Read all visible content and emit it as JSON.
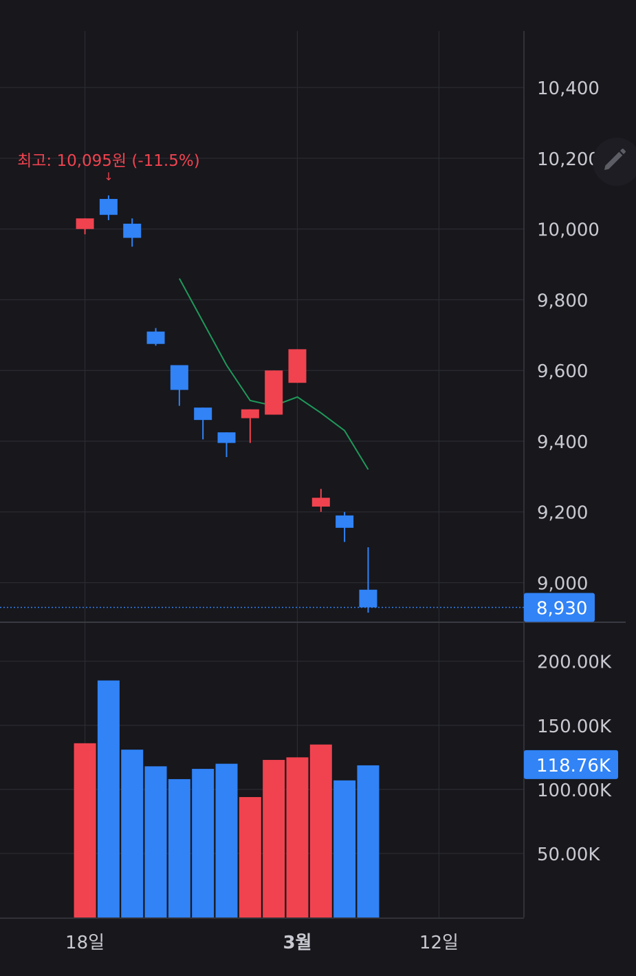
{
  "theme": {
    "background": "#17171c",
    "grid": "#2b2b33",
    "axis_text": "#c9c9d1",
    "up_color": "#f0434f",
    "down_color": "#3183f6",
    "ma_color": "#1f9a5a",
    "current_price_bg": "#3183f6"
  },
  "tools": {
    "edit_icon": "pencil-icon"
  },
  "chart_data": [
    {
      "type": "candlestick",
      "x_ticks": [
        {
          "label": "18일",
          "index": 0
        },
        {
          "label": "3월",
          "index": 9,
          "bold": true
        },
        {
          "label": "12일",
          "index": 15
        }
      ],
      "y_ticks": [
        "10,400",
        "10,200",
        "10,000",
        "9,800",
        "9,600",
        "9,400",
        "9,200",
        "9,000"
      ],
      "y_tick_values": [
        10400,
        10200,
        10000,
        9800,
        9600,
        9400,
        9200,
        9000
      ],
      "ylim": [
        8890,
        10560
      ],
      "xlim": [
        -3.6,
        18.6
      ],
      "candles": [
        {
          "i": 0,
          "open": 10000,
          "close": 10030,
          "high": 10030,
          "low": 9985
        },
        {
          "i": 1,
          "open": 10085,
          "close": 10040,
          "high": 10095,
          "low": 10025
        },
        {
          "i": 2,
          "open": 10015,
          "close": 9975,
          "high": 10030,
          "low": 9950
        },
        {
          "i": 3,
          "open": 9710,
          "close": 9675,
          "high": 9720,
          "low": 9670
        },
        {
          "i": 4,
          "open": 9615,
          "close": 9545,
          "high": 9615,
          "low": 9500
        },
        {
          "i": 5,
          "open": 9495,
          "close": 9460,
          "high": 9495,
          "low": 9405
        },
        {
          "i": 6,
          "open": 9425,
          "close": 9395,
          "high": 9425,
          "low": 9355
        },
        {
          "i": 7,
          "open": 9465,
          "close": 9490,
          "high": 9490,
          "low": 9395
        },
        {
          "i": 8,
          "open": 9475,
          "close": 9600,
          "high": 9600,
          "low": 9475
        },
        {
          "i": 9,
          "open": 9565,
          "close": 9660,
          "high": 9660,
          "low": 9565
        },
        {
          "i": 10,
          "open": 9215,
          "close": 9240,
          "high": 9265,
          "low": 9200
        },
        {
          "i": 11,
          "open": 9190,
          "close": 9155,
          "high": 9200,
          "low": 9115
        },
        {
          "i": 12,
          "open": 8980,
          "close": 8930,
          "high": 9100,
          "low": 8915
        }
      ],
      "moving_average": [
        {
          "i": 4,
          "value": 9860
        },
        {
          "i": 6,
          "value": 9615
        },
        {
          "i": 7,
          "value": 9515
        },
        {
          "i": 8,
          "value": 9500
        },
        {
          "i": 9,
          "value": 9525
        },
        {
          "i": 10,
          "value": 9480
        },
        {
          "i": 11,
          "value": 9430
        },
        {
          "i": 12,
          "value": 9320
        }
      ],
      "current_price": {
        "value": 8930,
        "label": "8,930"
      },
      "high_annotation": {
        "i": 1,
        "value": 10095,
        "label": "최고: 10,095원 (-11.5%)",
        "arrow": "↓"
      }
    },
    {
      "type": "bar",
      "title": "volume",
      "y_ticks": [
        "200.00K",
        "150.00K",
        "100.00K",
        "50.00K"
      ],
      "y_tick_values": [
        200000,
        150000,
        100000,
        50000
      ],
      "ylim": [
        0,
        231000
      ],
      "bars": [
        {
          "i": 0,
          "value": 136000,
          "dir": "up"
        },
        {
          "i": 1,
          "value": 185000,
          "dir": "down"
        },
        {
          "i": 2,
          "value": 131000,
          "dir": "down"
        },
        {
          "i": 3,
          "value": 118000,
          "dir": "down"
        },
        {
          "i": 4,
          "value": 108000,
          "dir": "down"
        },
        {
          "i": 5,
          "value": 116000,
          "dir": "down"
        },
        {
          "i": 6,
          "value": 120000,
          "dir": "down"
        },
        {
          "i": 7,
          "value": 94000,
          "dir": "up"
        },
        {
          "i": 8,
          "value": 123000,
          "dir": "up"
        },
        {
          "i": 9,
          "value": 125000,
          "dir": "up"
        },
        {
          "i": 10,
          "value": 135000,
          "dir": "up"
        },
        {
          "i": 11,
          "value": 107000,
          "dir": "down"
        },
        {
          "i": 12,
          "value": 118760,
          "dir": "down"
        }
      ],
      "current_volume": {
        "value": 118760,
        "label": "118.76K"
      }
    }
  ]
}
